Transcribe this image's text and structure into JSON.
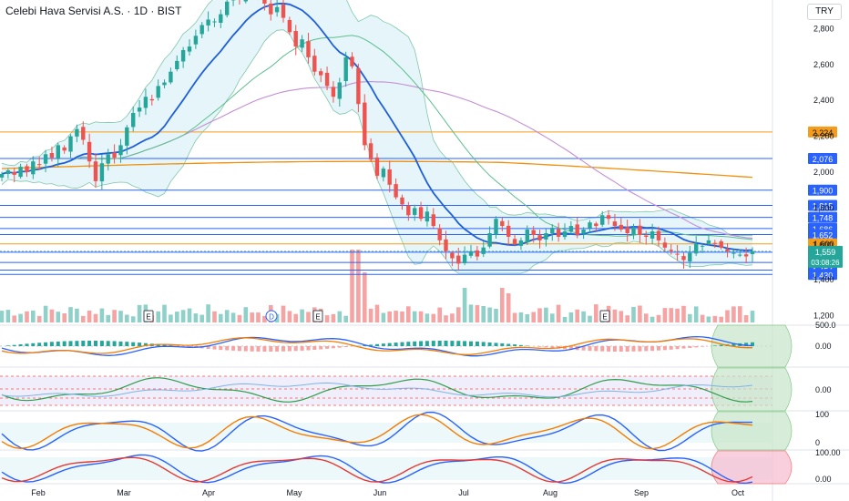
{
  "header": {
    "title": "Celebi Hava Servisi A.S. · 1D · BIST",
    "currency": "TRY"
  },
  "chart_data": {
    "type": "candlestick",
    "symbol": "Celebi Hava Servisi A.S.",
    "interval": "1D",
    "exchange": "BIST",
    "currency": "TRY",
    "y_ticks": [
      1200,
      1400,
      1600,
      1800,
      2000,
      2200,
      2400,
      2600,
      2800
    ],
    "x_labels": [
      "Feb",
      "Mar",
      "Apr",
      "May",
      "Jun",
      "Jul",
      "Aug",
      "Sep",
      "Oct"
    ],
    "earnings_markers": [
      "E",
      "D",
      "E",
      "E"
    ],
    "horizontal_levels": [
      {
        "value": 2224,
        "label": "2,224",
        "color": "#f59d1a"
      },
      {
        "value": 2076,
        "label": "2,076",
        "color": "#2962ff"
      },
      {
        "value": 1900,
        "label": "1,900",
        "color": "#2962ff"
      },
      {
        "value": 1815,
        "label": "1,815",
        "color": "#2962ff"
      },
      {
        "value": 1748,
        "label": "1,748",
        "color": "#2962ff"
      },
      {
        "value": 1686,
        "label": "1,686",
        "color": "#2962ff"
      },
      {
        "value": 1652,
        "label": "1,652",
        "color": "#2962ff"
      },
      {
        "value": 1600,
        "label": "1,600",
        "color": "#f59d1a"
      },
      {
        "value": 1554,
        "label": "1,554",
        "color": "#2962ff"
      },
      {
        "value": 1497,
        "label": "1,497",
        "color": "#2962ff"
      },
      {
        "value": 1454,
        "label": "1,454",
        "color": "#2962ff"
      },
      {
        "value": 1430,
        "label": "1,430",
        "color": "#2962ff"
      }
    ],
    "last_price": {
      "value": 1559,
      "label": "1,559",
      "countdown": "03:08:26",
      "color": "#26a69a"
    },
    "close_series": [
      1990,
      2010,
      1985,
      2030,
      2000,
      2060,
      2040,
      2100,
      2080,
      2150,
      2120,
      2200,
      2240,
      2180,
      2060,
      1950,
      2050,
      2100,
      2080,
      2150,
      2250,
      2330,
      2360,
      2420,
      2400,
      2480,
      2500,
      2560,
      2620,
      2680,
      2700,
      2760,
      2820,
      2850,
      2840,
      2880,
      2950,
      3000,
      2960,
      3050,
      3020,
      2980,
      2940,
      2880,
      2920,
      2860,
      2780,
      2700,
      2740,
      2640,
      2560,
      2540,
      2480,
      2420,
      2500,
      2640,
      2590,
      2380,
      2150,
      2070,
      1980,
      2020,
      1930,
      1860,
      1820,
      1760,
      1800,
      1740,
      1780,
      1700,
      1620,
      1560,
      1520,
      1490,
      1540,
      1560,
      1530,
      1580,
      1660,
      1740,
      1700,
      1640,
      1600,
      1620,
      1680,
      1650,
      1620,
      1660,
      1690,
      1640,
      1670,
      1700,
      1650,
      1680,
      1720,
      1700,
      1760,
      1740,
      1700,
      1680,
      1660,
      1690,
      1650,
      1640,
      1670,
      1620,
      1580,
      1560,
      1540,
      1510,
      1550,
      1600,
      1590,
      1620,
      1600,
      1580,
      1560,
      1550,
      1540,
      1530,
      1560
    ],
    "indicators": {
      "volume": "histogram",
      "moving_averages": [
        "blue 20-period",
        "green",
        "purple",
        "orange"
      ],
      "bollinger_bands": "shaded",
      "pane_macd_labels": [
        "500.0",
        "0.00"
      ],
      "pane_rsi_labels": [
        "0.00"
      ],
      "pane_stoch_labels": [
        "100",
        "0"
      ],
      "pane_stochrsi_labels": [
        "100.00",
        "0.00"
      ]
    }
  }
}
